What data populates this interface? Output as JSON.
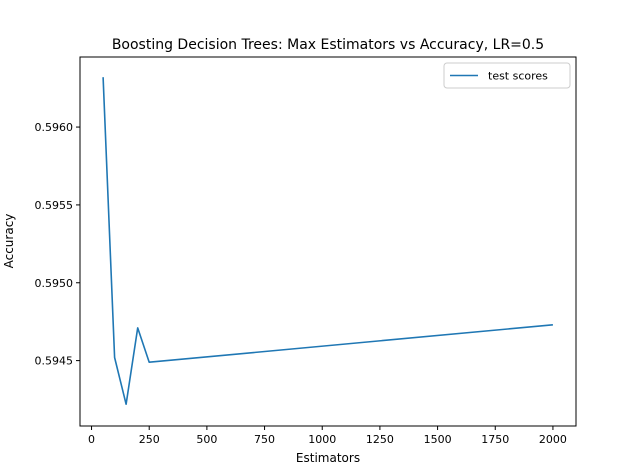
{
  "chart_data": {
    "type": "line",
    "title": "Boosting Decision Trees: Max Estimators vs Accuracy, LR=0.5",
    "xlabel": "Estimators",
    "ylabel": "Accuracy",
    "xlim": [
      -50,
      2100
    ],
    "ylim": [
      0.59408,
      0.59645
    ],
    "x_ticks": [
      0,
      250,
      500,
      750,
      1000,
      1250,
      1500,
      1750,
      2000
    ],
    "y_ticks": [
      0.5945,
      0.595,
      0.5955,
      0.596
    ],
    "y_tick_labels": [
      "0.5945",
      "0.5950",
      "0.5955",
      "0.5960"
    ],
    "grid": false,
    "legend_position": "upper right",
    "series": [
      {
        "name": "test scores",
        "color": "#1f77b4",
        "x": [
          50,
          100,
          150,
          200,
          250,
          2000
        ],
        "y": [
          0.59632,
          0.59452,
          0.59422,
          0.59471,
          0.59449,
          0.59473
        ]
      }
    ]
  }
}
